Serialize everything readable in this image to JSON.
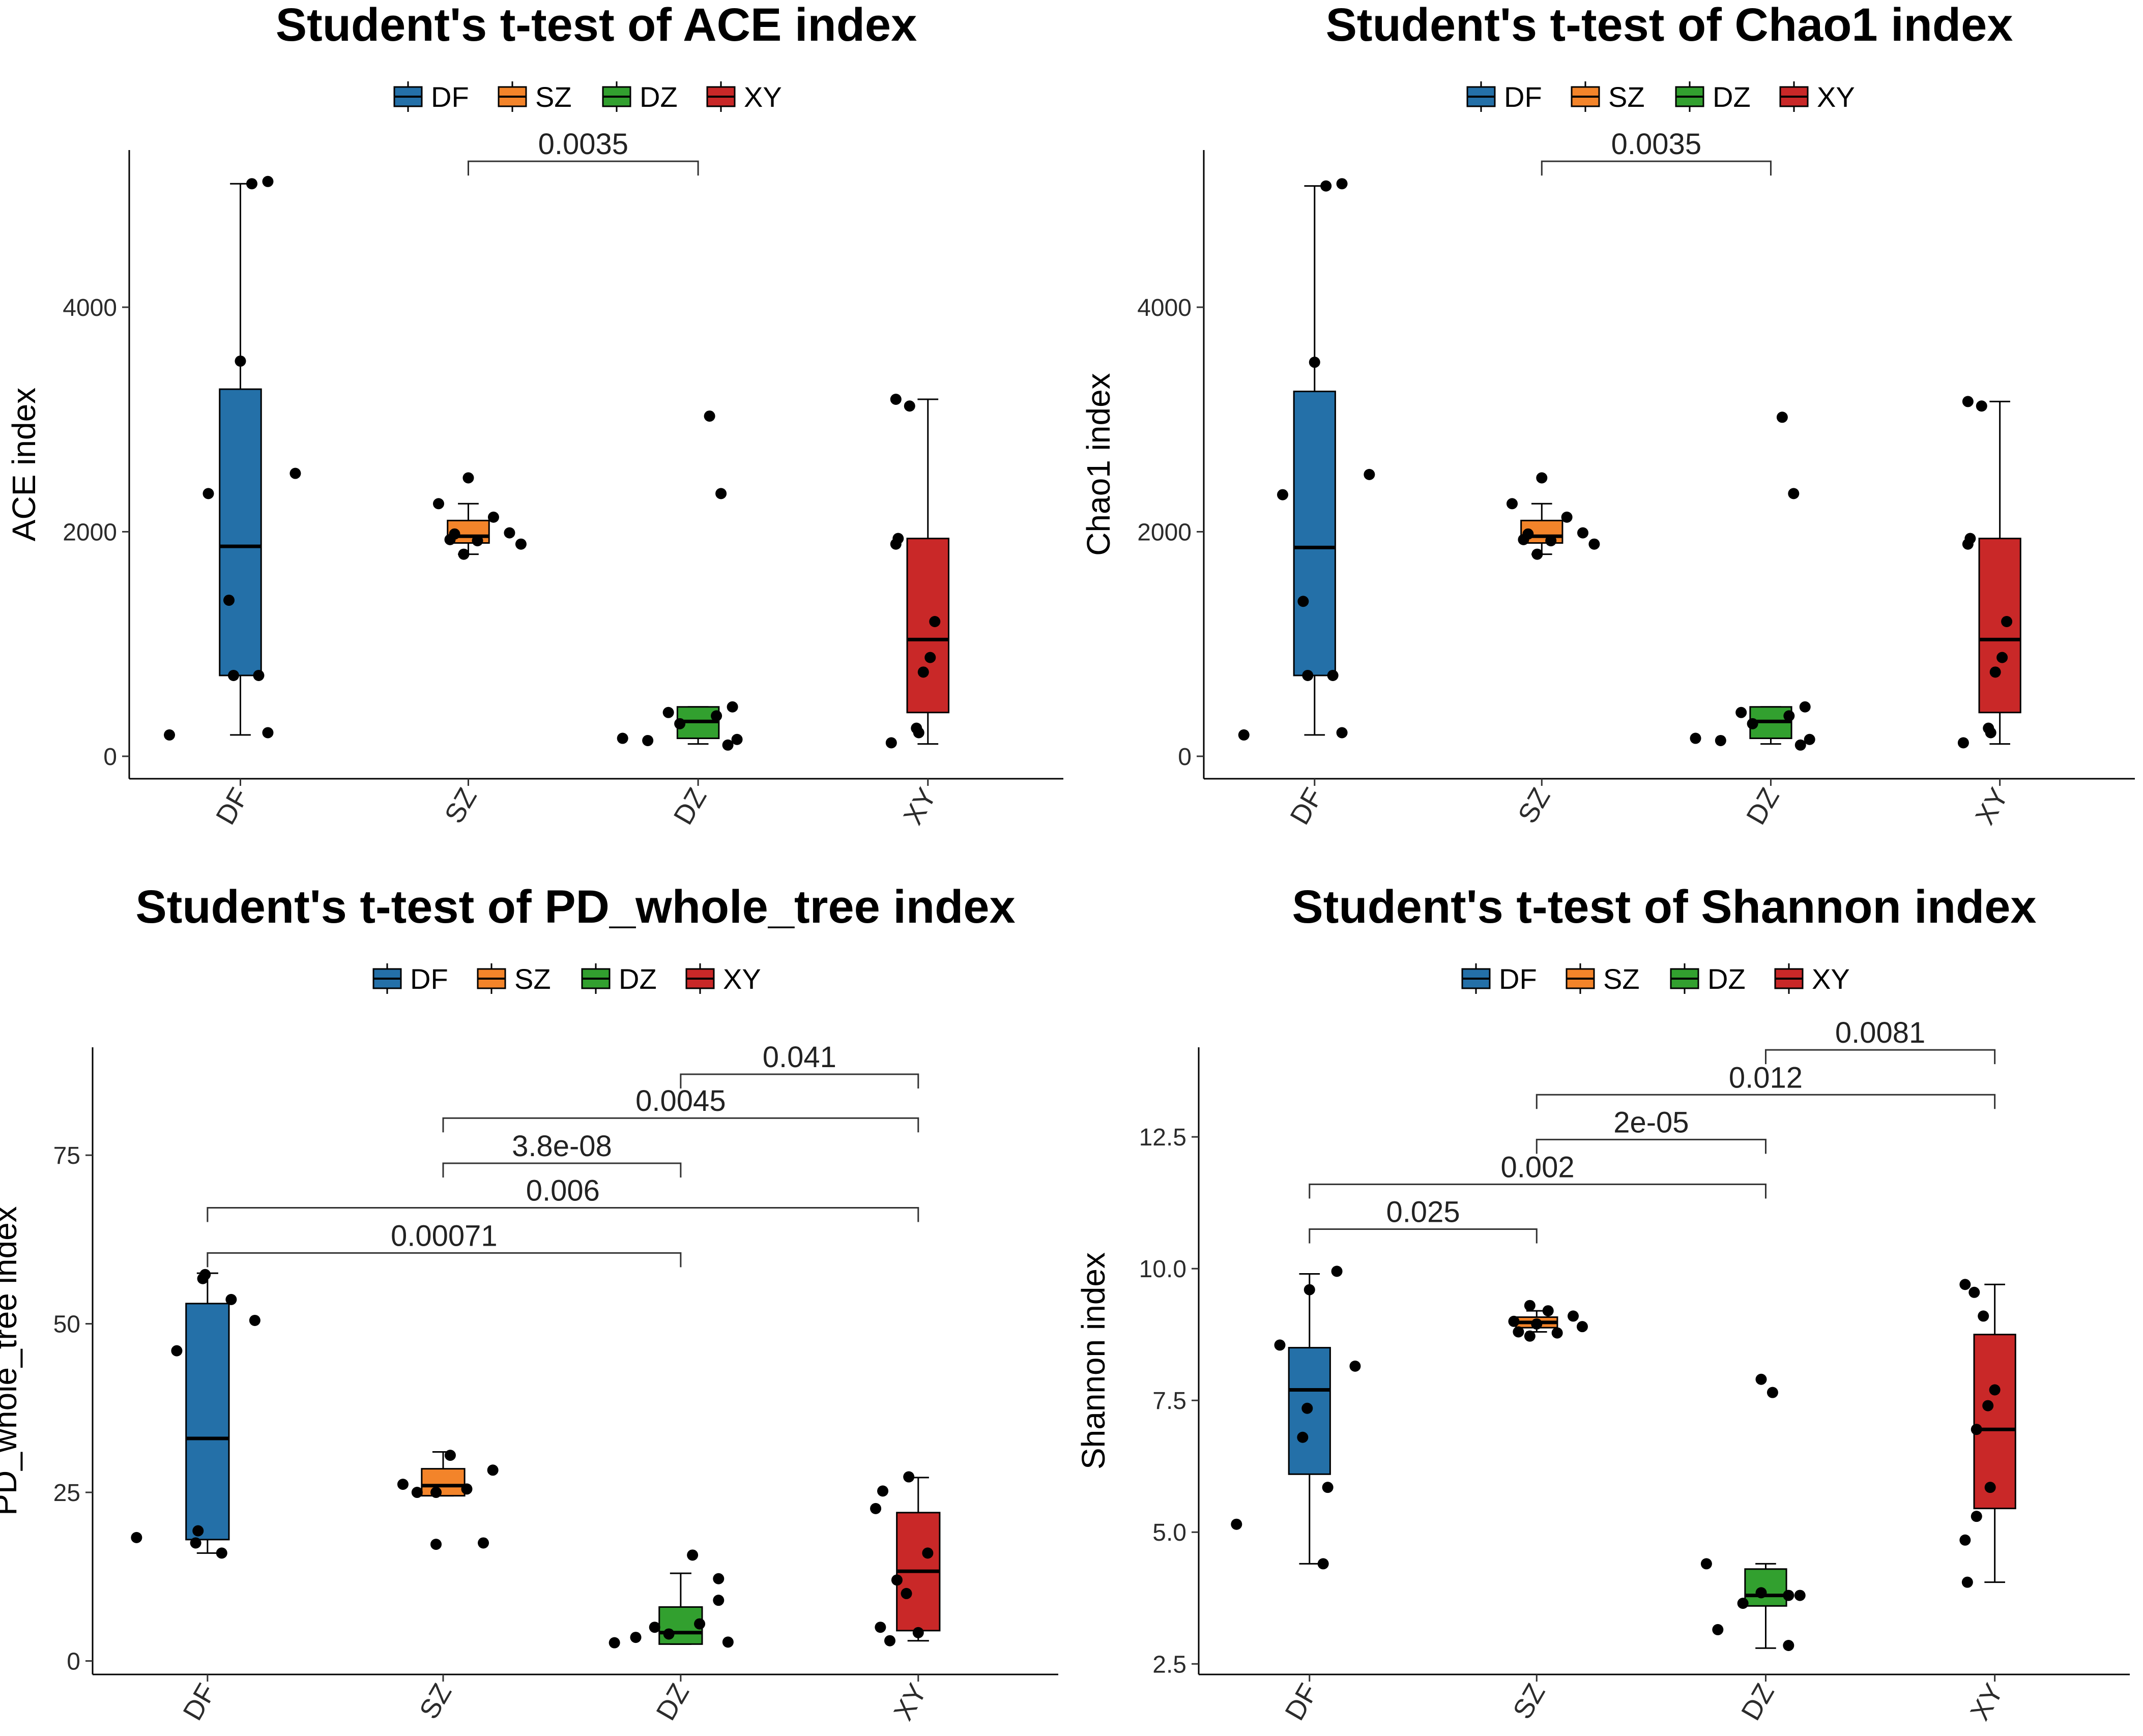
{
  "colors": {
    "DF": "#2470a8",
    "SZ": "#f3842a",
    "DZ": "#32a02f",
    "XY": "#c92828"
  },
  "legend": [
    "DF",
    "SZ",
    "DZ",
    "XY"
  ],
  "chart_data": [
    {
      "type": "box",
      "title": "Student's t-test of ACE index",
      "ylabel": "ACE index",
      "xlabel": "",
      "categories": [
        "DF",
        "SZ",
        "DZ",
        "XY"
      ],
      "ylim": [
        -200,
        5400
      ],
      "yticks": [
        0,
        2000,
        4000
      ],
      "ytick_labels": [
        "0",
        "2000",
        "4000"
      ],
      "boxes": [
        {
          "group": "DF",
          "min": 190,
          "q1": 720,
          "median": 1870,
          "q3": 3270,
          "max": 5100
        },
        {
          "group": "SZ",
          "min": 1800,
          "q1": 1900,
          "median": 1960,
          "q3": 2100,
          "max": 2250
        },
        {
          "group": "DZ",
          "min": 110,
          "q1": 160,
          "median": 310,
          "q3": 440,
          "max": 440
        },
        {
          "group": "XY",
          "min": 110,
          "q1": 390,
          "median": 1040,
          "q3": 1940,
          "max": 3180
        }
      ],
      "points": [
        {
          "group": "DF",
          "jitter": 0.05,
          "y": 5100
        },
        {
          "group": "DF",
          "jitter": 0.12,
          "y": 5120
        },
        {
          "group": "DF",
          "jitter": 0.0,
          "y": 3520
        },
        {
          "group": "DF",
          "jitter": 0.24,
          "y": 2520
        },
        {
          "group": "DF",
          "jitter": -0.14,
          "y": 2340
        },
        {
          "group": "DF",
          "jitter": -0.05,
          "y": 1390
        },
        {
          "group": "DF",
          "jitter": -0.03,
          "y": 720
        },
        {
          "group": "DF",
          "jitter": 0.08,
          "y": 720
        },
        {
          "group": "DF",
          "jitter": 0.12,
          "y": 210
        },
        {
          "group": "DF",
          "jitter": -0.31,
          "y": 190
        },
        {
          "group": "SZ",
          "jitter": 0.0,
          "y": 2480
        },
        {
          "group": "SZ",
          "jitter": -0.13,
          "y": 2250
        },
        {
          "group": "SZ",
          "jitter": 0.11,
          "y": 2130
        },
        {
          "group": "SZ",
          "jitter": 0.18,
          "y": 1990
        },
        {
          "group": "SZ",
          "jitter": -0.06,
          "y": 1980
        },
        {
          "group": "SZ",
          "jitter": -0.08,
          "y": 1930
        },
        {
          "group": "SZ",
          "jitter": 0.04,
          "y": 1920
        },
        {
          "group": "SZ",
          "jitter": 0.23,
          "y": 1890
        },
        {
          "group": "SZ",
          "jitter": -0.02,
          "y": 1800
        },
        {
          "group": "DZ",
          "jitter": 0.05,
          "y": 3030
        },
        {
          "group": "DZ",
          "jitter": 0.1,
          "y": 2340
        },
        {
          "group": "DZ",
          "jitter": 0.15,
          "y": 440
        },
        {
          "group": "DZ",
          "jitter": -0.13,
          "y": 390
        },
        {
          "group": "DZ",
          "jitter": 0.08,
          "y": 360
        },
        {
          "group": "DZ",
          "jitter": -0.08,
          "y": 290
        },
        {
          "group": "DZ",
          "jitter": -0.22,
          "y": 140
        },
        {
          "group": "DZ",
          "jitter": 0.17,
          "y": 150
        },
        {
          "group": "DZ",
          "jitter": 0.13,
          "y": 100
        },
        {
          "group": "DZ",
          "jitter": -0.33,
          "y": 160
        },
        {
          "group": "XY",
          "jitter": -0.14,
          "y": 3180
        },
        {
          "group": "XY",
          "jitter": -0.08,
          "y": 3120
        },
        {
          "group": "XY",
          "jitter": -0.13,
          "y": 1940
        },
        {
          "group": "XY",
          "jitter": -0.14,
          "y": 1890
        },
        {
          "group": "XY",
          "jitter": 0.03,
          "y": 1200
        },
        {
          "group": "XY",
          "jitter": 0.01,
          "y": 880
        },
        {
          "group": "XY",
          "jitter": -0.02,
          "y": 750
        },
        {
          "group": "XY",
          "jitter": -0.05,
          "y": 250
        },
        {
          "group": "XY",
          "jitter": -0.04,
          "y": 210
        },
        {
          "group": "XY",
          "jitter": -0.16,
          "y": 120
        }
      ],
      "comparisons": [
        {
          "from": "SZ",
          "to": "DZ",
          "label": "0.0035",
          "y": 5300
        }
      ]
    },
    {
      "type": "box",
      "title": "Student's t-test of Chao1 index",
      "ylabel": "Chao1 index",
      "xlabel": "",
      "categories": [
        "DF",
        "SZ",
        "DZ",
        "XY"
      ],
      "ylim": [
        -200,
        5400
      ],
      "yticks": [
        0,
        2000,
        4000
      ],
      "ytick_labels": [
        "0",
        "2000",
        "4000"
      ],
      "boxes": [
        {
          "group": "DF",
          "min": 190,
          "q1": 720,
          "median": 1860,
          "q3": 3250,
          "max": 5080
        },
        {
          "group": "SZ",
          "min": 1800,
          "q1": 1900,
          "median": 1960,
          "q3": 2100,
          "max": 2250
        },
        {
          "group": "DZ",
          "min": 110,
          "q1": 160,
          "median": 310,
          "q3": 440,
          "max": 440
        },
        {
          "group": "XY",
          "min": 110,
          "q1": 390,
          "median": 1040,
          "q3": 1940,
          "max": 3160
        }
      ],
      "points": [
        {
          "group": "DF",
          "jitter": 0.05,
          "y": 5080
        },
        {
          "group": "DF",
          "jitter": 0.12,
          "y": 5100
        },
        {
          "group": "DF",
          "jitter": 0.0,
          "y": 3510
        },
        {
          "group": "DF",
          "jitter": 0.24,
          "y": 2510
        },
        {
          "group": "DF",
          "jitter": -0.14,
          "y": 2330
        },
        {
          "group": "DF",
          "jitter": -0.05,
          "y": 1380
        },
        {
          "group": "DF",
          "jitter": -0.03,
          "y": 720
        },
        {
          "group": "DF",
          "jitter": 0.08,
          "y": 720
        },
        {
          "group": "DF",
          "jitter": 0.12,
          "y": 210
        },
        {
          "group": "DF",
          "jitter": -0.31,
          "y": 190
        },
        {
          "group": "SZ",
          "jitter": 0.0,
          "y": 2480
        },
        {
          "group": "SZ",
          "jitter": -0.13,
          "y": 2250
        },
        {
          "group": "SZ",
          "jitter": 0.11,
          "y": 2130
        },
        {
          "group": "SZ",
          "jitter": 0.18,
          "y": 1990
        },
        {
          "group": "SZ",
          "jitter": -0.06,
          "y": 1980
        },
        {
          "group": "SZ",
          "jitter": -0.08,
          "y": 1930
        },
        {
          "group": "SZ",
          "jitter": 0.04,
          "y": 1920
        },
        {
          "group": "SZ",
          "jitter": 0.23,
          "y": 1890
        },
        {
          "group": "SZ",
          "jitter": -0.02,
          "y": 1800
        },
        {
          "group": "DZ",
          "jitter": 0.05,
          "y": 3020
        },
        {
          "group": "DZ",
          "jitter": 0.1,
          "y": 2340
        },
        {
          "group": "DZ",
          "jitter": 0.15,
          "y": 440
        },
        {
          "group": "DZ",
          "jitter": -0.13,
          "y": 390
        },
        {
          "group": "DZ",
          "jitter": 0.08,
          "y": 360
        },
        {
          "group": "DZ",
          "jitter": -0.08,
          "y": 290
        },
        {
          "group": "DZ",
          "jitter": -0.22,
          "y": 140
        },
        {
          "group": "DZ",
          "jitter": 0.17,
          "y": 150
        },
        {
          "group": "DZ",
          "jitter": 0.13,
          "y": 100
        },
        {
          "group": "DZ",
          "jitter": -0.33,
          "y": 160
        },
        {
          "group": "XY",
          "jitter": -0.14,
          "y": 3160
        },
        {
          "group": "XY",
          "jitter": -0.08,
          "y": 3120
        },
        {
          "group": "XY",
          "jitter": -0.13,
          "y": 1940
        },
        {
          "group": "XY",
          "jitter": -0.14,
          "y": 1890
        },
        {
          "group": "XY",
          "jitter": 0.03,
          "y": 1200
        },
        {
          "group": "XY",
          "jitter": 0.01,
          "y": 880
        },
        {
          "group": "XY",
          "jitter": -0.02,
          "y": 750
        },
        {
          "group": "XY",
          "jitter": -0.05,
          "y": 250
        },
        {
          "group": "XY",
          "jitter": -0.04,
          "y": 210
        },
        {
          "group": "XY",
          "jitter": -0.16,
          "y": 120
        }
      ],
      "comparisons": [
        {
          "from": "SZ",
          "to": "DZ",
          "label": "0.0035",
          "y": 5300
        }
      ]
    },
    {
      "type": "box",
      "title": "Student's t-test of PD_whole_tree index",
      "ylabel": "PD_whole_tree index",
      "xlabel": "",
      "categories": [
        "DF",
        "SZ",
        "DZ",
        "XY"
      ],
      "ylim": [
        -2,
        91
      ],
      "yticks": [
        0,
        25,
        50,
        75
      ],
      "ytick_labels": [
        "0",
        "25",
        "50",
        "75"
      ],
      "boxes": [
        {
          "group": "DF",
          "min": 16,
          "q1": 18,
          "median": 33,
          "q3": 53,
          "max": 57.5
        },
        {
          "group": "SZ",
          "min": 24.5,
          "q1": 24.5,
          "median": 26,
          "q3": 28.5,
          "max": 31
        },
        {
          "group": "DZ",
          "min": 2.5,
          "q1": 2.5,
          "median": 4.2,
          "q3": 8,
          "max": 13
        },
        {
          "group": "XY",
          "min": 3,
          "q1": 4.5,
          "median": 13.3,
          "q3": 22,
          "max": 27.2
        }
      ],
      "points": [
        {
          "group": "DF",
          "jitter": -0.01,
          "y": 57.3
        },
        {
          "group": "DF",
          "jitter": -0.02,
          "y": 56.7
        },
        {
          "group": "DF",
          "jitter": 0.1,
          "y": 53.6
        },
        {
          "group": "DF",
          "jitter": 0.2,
          "y": 50.5
        },
        {
          "group": "DF",
          "jitter": -0.13,
          "y": 46
        },
        {
          "group": "DF",
          "jitter": -0.04,
          "y": 19.3
        },
        {
          "group": "DF",
          "jitter": -0.3,
          "y": 18.3
        },
        {
          "group": "DF",
          "jitter": -0.05,
          "y": 17.5
        },
        {
          "group": "DF",
          "jitter": 0.06,
          "y": 16
        },
        {
          "group": "SZ",
          "jitter": 0.03,
          "y": 30.5
        },
        {
          "group": "SZ",
          "jitter": 0.21,
          "y": 28.3
        },
        {
          "group": "SZ",
          "jitter": -0.17,
          "y": 26.2
        },
        {
          "group": "SZ",
          "jitter": 0.1,
          "y": 25.5
        },
        {
          "group": "SZ",
          "jitter": -0.11,
          "y": 25
        },
        {
          "group": "SZ",
          "jitter": -0.03,
          "y": 25
        },
        {
          "group": "SZ",
          "jitter": -0.03,
          "y": 17.3
        },
        {
          "group": "SZ",
          "jitter": 0.17,
          "y": 17.5
        },
        {
          "group": "DZ",
          "jitter": 0.05,
          "y": 15.7
        },
        {
          "group": "DZ",
          "jitter": 0.16,
          "y": 12.2
        },
        {
          "group": "DZ",
          "jitter": 0.16,
          "y": 9
        },
        {
          "group": "DZ",
          "jitter": 0.08,
          "y": 5.5
        },
        {
          "group": "DZ",
          "jitter": -0.11,
          "y": 5
        },
        {
          "group": "DZ",
          "jitter": -0.05,
          "y": 4
        },
        {
          "group": "DZ",
          "jitter": -0.19,
          "y": 3.5
        },
        {
          "group": "DZ",
          "jitter": -0.28,
          "y": 2.7
        },
        {
          "group": "DZ",
          "jitter": 0.2,
          "y": 2.8
        },
        {
          "group": "XY",
          "jitter": -0.15,
          "y": 25.2
        },
        {
          "group": "XY",
          "jitter": -0.04,
          "y": 27.3
        },
        {
          "group": "XY",
          "jitter": -0.18,
          "y": 22.6
        },
        {
          "group": "XY",
          "jitter": 0.04,
          "y": 16
        },
        {
          "group": "XY",
          "jitter": -0.09,
          "y": 12
        },
        {
          "group": "XY",
          "jitter": -0.05,
          "y": 10
        },
        {
          "group": "XY",
          "jitter": -0.16,
          "y": 5
        },
        {
          "group": "XY",
          "jitter": 0.0,
          "y": 4.2
        },
        {
          "group": "XY",
          "jitter": -0.12,
          "y": 3
        }
      ],
      "comparisons": [
        {
          "from": "DF",
          "to": "DZ",
          "label": "0.00071",
          "y": 60.5
        },
        {
          "from": "DF",
          "to": "XY",
          "label": "0.006",
          "y": 67.2
        },
        {
          "from": "SZ",
          "to": "DZ",
          "label": "3.8e-08",
          "y": 73.8
        },
        {
          "from": "SZ",
          "to": "XY",
          "label": "0.0045",
          "y": 80.5
        },
        {
          "from": "DZ",
          "to": "XY",
          "label": "0.041",
          "y": 87
        }
      ]
    },
    {
      "type": "box",
      "title": "Student's t-test of Shannon index",
      "ylabel": "Shannon index",
      "xlabel": "",
      "categories": [
        "DF",
        "SZ",
        "DZ",
        "XY"
      ],
      "ylim": [
        2.3,
        14.2
      ],
      "yticks": [
        2.5,
        5.0,
        7.5,
        10.0,
        12.5
      ],
      "ytick_labels": [
        "2.5",
        "5.0",
        "7.5",
        "10.0",
        "12.5"
      ],
      "boxes": [
        {
          "group": "DF",
          "min": 4.4,
          "q1": 6.1,
          "median": 7.7,
          "q3": 8.5,
          "max": 9.9
        },
        {
          "group": "SZ",
          "min": 8.8,
          "q1": 8.88,
          "median": 8.98,
          "q3": 9.08,
          "max": 9.2
        },
        {
          "group": "DZ",
          "min": 2.8,
          "q1": 3.6,
          "median": 3.8,
          "q3": 4.3,
          "max": 4.4
        },
        {
          "group": "XY",
          "min": 4.05,
          "q1": 5.45,
          "median": 6.95,
          "q3": 8.75,
          "max": 9.7
        }
      ],
      "points": [
        {
          "group": "DF",
          "jitter": 0.12,
          "y": 9.95
        },
        {
          "group": "DF",
          "jitter": 0.0,
          "y": 9.6
        },
        {
          "group": "DF",
          "jitter": -0.13,
          "y": 8.55
        },
        {
          "group": "DF",
          "jitter": 0.2,
          "y": 8.15
        },
        {
          "group": "DF",
          "jitter": -0.01,
          "y": 7.35
        },
        {
          "group": "DF",
          "jitter": -0.03,
          "y": 6.8
        },
        {
          "group": "DF",
          "jitter": 0.08,
          "y": 5.85
        },
        {
          "group": "DF",
          "jitter": -0.32,
          "y": 5.15
        },
        {
          "group": "DF",
          "jitter": 0.06,
          "y": 4.4
        },
        {
          "group": "SZ",
          "jitter": -0.03,
          "y": 9.3
        },
        {
          "group": "SZ",
          "jitter": 0.05,
          "y": 9.2
        },
        {
          "group": "SZ",
          "jitter": 0.16,
          "y": 9.1
        },
        {
          "group": "SZ",
          "jitter": -0.1,
          "y": 9.0
        },
        {
          "group": "SZ",
          "jitter": 0.0,
          "y": 8.95
        },
        {
          "group": "SZ",
          "jitter": 0.2,
          "y": 8.9
        },
        {
          "group": "SZ",
          "jitter": -0.08,
          "y": 8.8
        },
        {
          "group": "SZ",
          "jitter": 0.09,
          "y": 8.78
        },
        {
          "group": "SZ",
          "jitter": -0.03,
          "y": 8.72
        },
        {
          "group": "DZ",
          "jitter": -0.02,
          "y": 7.9
        },
        {
          "group": "DZ",
          "jitter": 0.03,
          "y": 7.65
        },
        {
          "group": "DZ",
          "jitter": -0.26,
          "y": 4.4
        },
        {
          "group": "DZ",
          "jitter": -0.02,
          "y": 3.85
        },
        {
          "group": "DZ",
          "jitter": 0.1,
          "y": 3.8
        },
        {
          "group": "DZ",
          "jitter": 0.15,
          "y": 3.8
        },
        {
          "group": "DZ",
          "jitter": -0.1,
          "y": 3.65
        },
        {
          "group": "DZ",
          "jitter": -0.21,
          "y": 3.15
        },
        {
          "group": "DZ",
          "jitter": 0.1,
          "y": 2.85
        },
        {
          "group": "XY",
          "jitter": -0.13,
          "y": 9.7
        },
        {
          "group": "XY",
          "jitter": -0.09,
          "y": 9.55
        },
        {
          "group": "XY",
          "jitter": -0.05,
          "y": 9.1
        },
        {
          "group": "XY",
          "jitter": 0.0,
          "y": 7.7
        },
        {
          "group": "XY",
          "jitter": -0.03,
          "y": 7.4
        },
        {
          "group": "XY",
          "jitter": -0.08,
          "y": 6.95
        },
        {
          "group": "XY",
          "jitter": -0.02,
          "y": 5.85
        },
        {
          "group": "XY",
          "jitter": -0.08,
          "y": 5.3
        },
        {
          "group": "XY",
          "jitter": -0.13,
          "y": 4.85
        },
        {
          "group": "XY",
          "jitter": -0.12,
          "y": 4.05
        }
      ],
      "comparisons": [
        {
          "from": "DF",
          "to": "SZ",
          "label": "0.025",
          "y": 10.75
        },
        {
          "from": "DF",
          "to": "DZ",
          "label": "0.002",
          "y": 11.6
        },
        {
          "from": "SZ",
          "to": "DZ",
          "label": "2e-05",
          "y": 12.45
        },
        {
          "from": "SZ",
          "to": "XY",
          "label": "0.012",
          "y": 13.3
        },
        {
          "from": "DZ",
          "to": "XY",
          "label": "0.0081",
          "y": 14.15
        }
      ]
    }
  ]
}
